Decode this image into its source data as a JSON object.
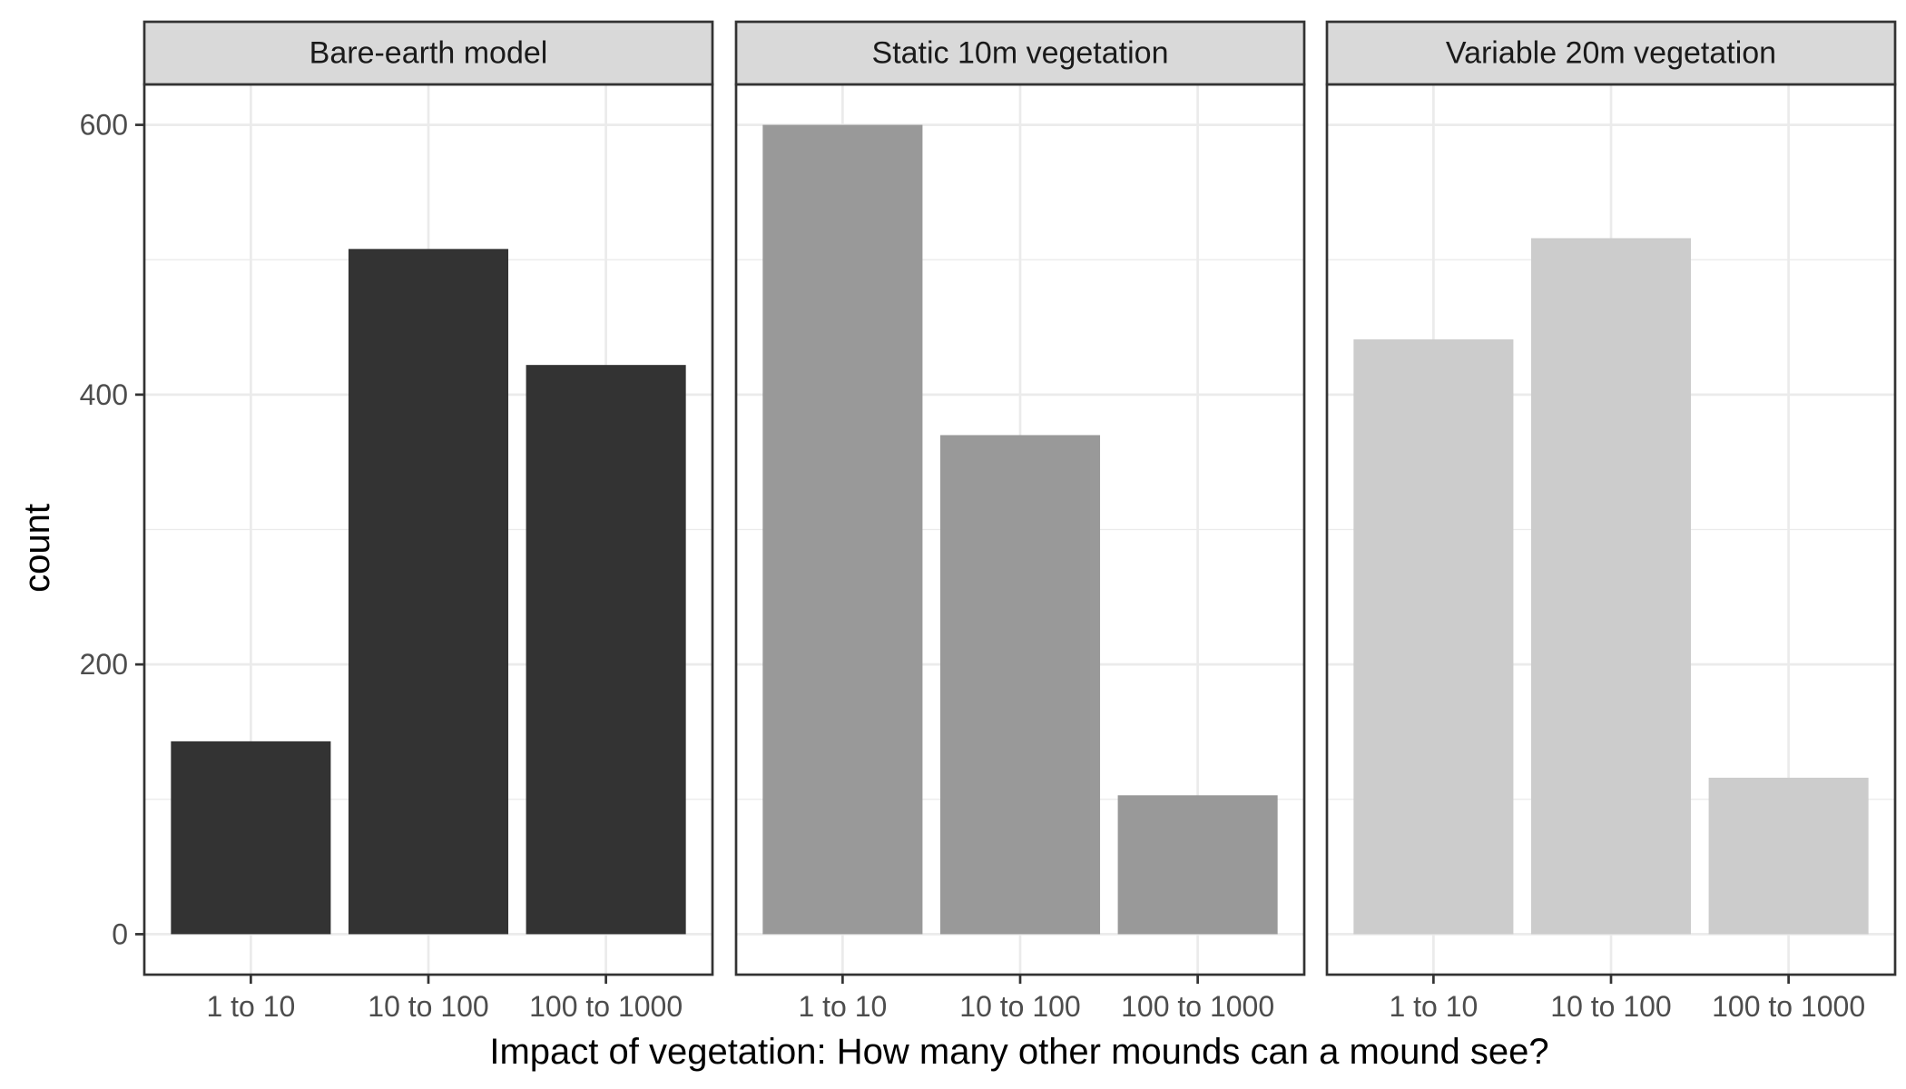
{
  "chart_data": {
    "type": "bar",
    "title": "",
    "xlabel": "Impact of vegetation: How many other mounds can a mound see?",
    "ylabel": "count",
    "categories": [
      "1 to 10",
      "10 to 100",
      "100 to 1000"
    ],
    "ylim": [
      -30,
      630
    ],
    "y_ticks": [
      "0",
      "200",
      "400",
      "600"
    ],
    "grid": true,
    "legend": "none",
    "panels": [
      {
        "name": "Bare-earth model",
        "color": "#333333",
        "values": [
          143,
          508,
          422
        ]
      },
      {
        "name": "Static 10m vegetation",
        "color": "#999999",
        "values": [
          600,
          370,
          103
        ]
      },
      {
        "name": "Variable 20m vegetation",
        "color": "#cccccc",
        "values": [
          441,
          516,
          116
        ]
      }
    ]
  }
}
